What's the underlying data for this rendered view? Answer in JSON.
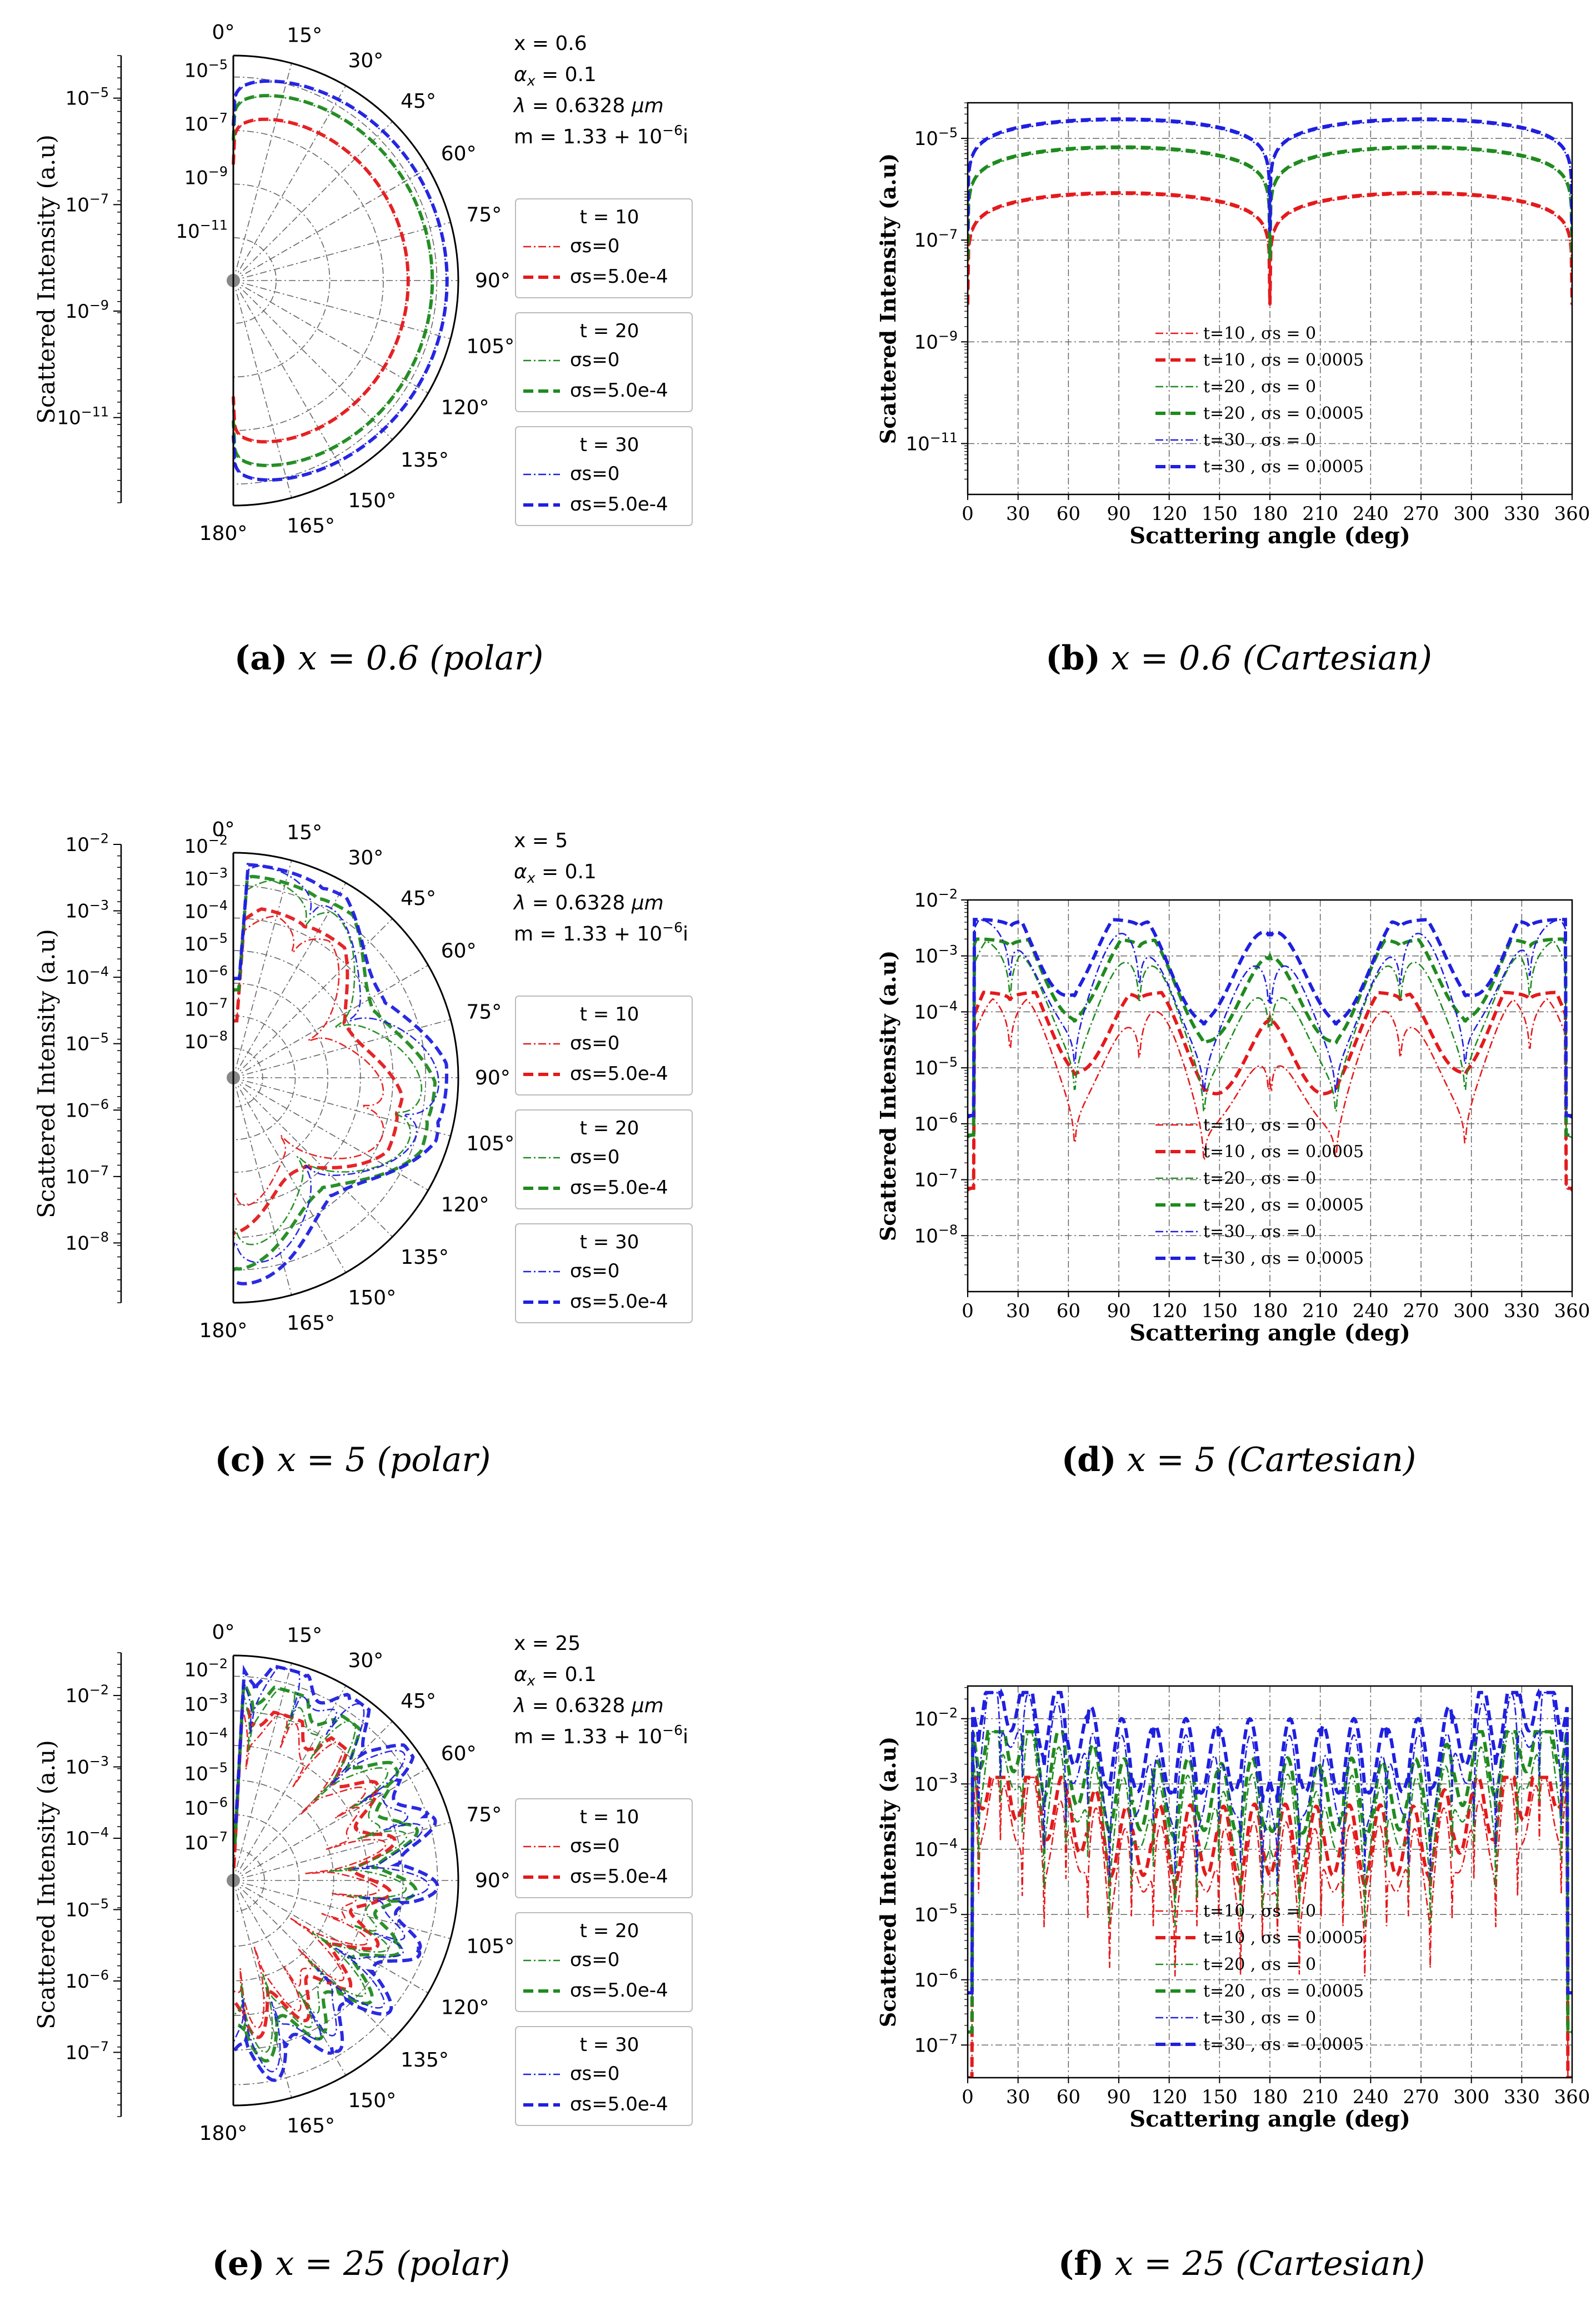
{
  "chart_data": [
    {
      "id": "a",
      "type": "polar-line",
      "caption_letter": "(a)",
      "caption_math": "x = 0.6",
      "caption_mode": "(polar)",
      "ylabel": "Scattered  Intensity (a.u)",
      "theta_labels": [
        "0°",
        "15°",
        "30°",
        "45°",
        "60°",
        "75°",
        "90°",
        "105°",
        "120°",
        "135°",
        "150°",
        "165°",
        "180°"
      ],
      "radial_ticks": [
        {
          "label": "10^-5",
          "e": -5
        },
        {
          "label": "10^-7",
          "e": -7
        },
        {
          "label": "10^-9",
          "e": -9
        },
        {
          "label": "10^-11",
          "e": -11
        }
      ],
      "left_axis_ticks": [
        {
          "label": "10^-5",
          "e": -5
        },
        {
          "label": "10^-7",
          "e": -7
        },
        {
          "label": "10^-9",
          "e": -9
        },
        {
          "label": "10^-11",
          "e": -11
        }
      ],
      "log_range": [
        -12.6,
        -4.2
      ],
      "params": {
        "x": "x = 0.6",
        "alpha": "= 0.1",
        "lambda": "= 0.6328",
        "m": "m = 1.33 + 10"
      },
      "profile": "smooth",
      "peak_log": [
        -6.1,
        -5.2,
        -4.65
      ]
    },
    {
      "id": "b",
      "type": "line",
      "caption_letter": "(b)",
      "caption_math": "x = 0.6",
      "caption_mode": "(Cartesian)",
      "xlabel": "Scattering angle (deg)",
      "ylabel": "Scattered Intensity (a.u)",
      "x_ticks": [
        0,
        30,
        60,
        90,
        120,
        150,
        180,
        210,
        240,
        270,
        300,
        330,
        360
      ],
      "y_ticks": [
        {
          "label": "10^-5",
          "e": -5
        },
        {
          "label": "10^-7",
          "e": -7
        },
        {
          "label": "10^-9",
          "e": -9
        },
        {
          "label": "10^-11",
          "e": -11
        }
      ],
      "ylim_log": [
        -12,
        -4.3
      ],
      "xlim": [
        0,
        360
      ],
      "legend_pos": "center",
      "profile": "smooth",
      "peak_log": [
        -6.1,
        -5.2,
        -4.65
      ]
    },
    {
      "id": "c",
      "type": "polar-line",
      "caption_letter": "(c)",
      "caption_math": "x = 5",
      "caption_mode": "(polar)",
      "ylabel": "Scattered  Intensity (a.u)",
      "theta_labels": [
        "0°",
        "15°",
        "30°",
        "45°",
        "60°",
        "75°",
        "90°",
        "105°",
        "120°",
        "135°",
        "150°",
        "165°",
        "180°"
      ],
      "radial_ticks": [
        {
          "label": "10^-2",
          "e": -2
        },
        {
          "label": "10^-3",
          "e": -3
        },
        {
          "label": "10^-4",
          "e": -4
        },
        {
          "label": "10^-5",
          "e": -5
        },
        {
          "label": "10^-6",
          "e": -6
        },
        {
          "label": "10^-7",
          "e": -7
        },
        {
          "label": "10^-8",
          "e": -8
        }
      ],
      "left_axis_ticks": [
        {
          "label": "10^-2",
          "e": -2
        },
        {
          "label": "10^-3",
          "e": -3
        },
        {
          "label": "10^-4",
          "e": -4
        },
        {
          "label": "10^-5",
          "e": -5
        },
        {
          "label": "10^-6",
          "e": -6
        },
        {
          "label": "10^-7",
          "e": -7
        },
        {
          "label": "10^-8",
          "e": -8
        }
      ],
      "log_range": [
        -8.9,
        -2.0
      ],
      "params": {
        "x": "x = 5",
        "alpha": "= 0.1",
        "lambda": "= 0.6328",
        "m": "m = 1.33 + 10"
      },
      "profile": "lobes5",
      "peak_log": [
        -3.65,
        -2.7,
        -2.35
      ]
    },
    {
      "id": "d",
      "type": "line",
      "caption_letter": "(d)",
      "caption_math": "x = 5",
      "caption_mode": "(Cartesian)",
      "xlabel": "Scattering angle (deg)",
      "ylabel": "Scattered Intensity (a.u)",
      "x_ticks": [
        0,
        30,
        60,
        90,
        120,
        150,
        180,
        210,
        240,
        270,
        300,
        330,
        360
      ],
      "y_ticks": [
        {
          "label": "10^-2",
          "e": -2
        },
        {
          "label": "10^-3",
          "e": -3
        },
        {
          "label": "10^-4",
          "e": -4
        },
        {
          "label": "10^-5",
          "e": -5
        },
        {
          "label": "10^-6",
          "e": -6
        },
        {
          "label": "10^-7",
          "e": -7
        },
        {
          "label": "10^-8",
          "e": -8
        }
      ],
      "ylim_log": [
        -9,
        -2
      ],
      "xlim": [
        0,
        360
      ],
      "legend_pos": "lower-center",
      "profile": "lobes5",
      "peak_log": [
        -3.65,
        -2.7,
        -2.35
      ]
    },
    {
      "id": "e",
      "type": "polar-line",
      "caption_letter": "(e)",
      "caption_math": "x = 25",
      "caption_mode": "(polar)",
      "ylabel": "Scattered  Intensity (a.u)",
      "theta_labels": [
        "0°",
        "15°",
        "30°",
        "45°",
        "60°",
        "75°",
        "90°",
        "105°",
        "120°",
        "135°",
        "150°",
        "165°",
        "180°"
      ],
      "radial_ticks": [
        {
          "label": "10^-2",
          "e": -2
        },
        {
          "label": "10^-3",
          "e": -3
        },
        {
          "label": "10^-4",
          "e": -4
        },
        {
          "label": "10^-5",
          "e": -5
        },
        {
          "label": "10^-6",
          "e": -6
        },
        {
          "label": "10^-7",
          "e": -7
        }
      ],
      "left_axis_ticks": [
        {
          "label": "10^-2",
          "e": -2
        },
        {
          "label": "10^-3",
          "e": -3
        },
        {
          "label": "10^-4",
          "e": -4
        },
        {
          "label": "10^-5",
          "e": -5
        },
        {
          "label": "10^-6",
          "e": -6
        },
        {
          "label": "10^-7",
          "e": -7
        }
      ],
      "log_range": [
        -7.9,
        -1.4
      ],
      "params": {
        "x": "x = 25",
        "alpha": "= 0.1",
        "lambda": "= 0.6328",
        "m": "m = 1.33 + 10"
      },
      "profile": "lobes25",
      "peak_log": [
        -3.0,
        -2.3,
        -1.7
      ]
    },
    {
      "id": "f",
      "type": "line",
      "caption_letter": "(f)",
      "caption_math": "x = 25",
      "caption_mode": "(Cartesian)",
      "xlabel": "Scattering angle (deg)",
      "ylabel": "Scattered Intensity (a.u)",
      "x_ticks": [
        0,
        30,
        60,
        90,
        120,
        150,
        180,
        210,
        240,
        270,
        300,
        330,
        360
      ],
      "y_ticks": [
        {
          "label": "10^-2",
          "e": -2
        },
        {
          "label": "10^-3",
          "e": -3
        },
        {
          "label": "10^-4",
          "e": -4
        },
        {
          "label": "10^-5",
          "e": -5
        },
        {
          "label": "10^-6",
          "e": -6
        },
        {
          "label": "10^-7",
          "e": -7
        }
      ],
      "ylim_log": [
        -7.5,
        -1.5
      ],
      "xlim": [
        0,
        360
      ],
      "legend_pos": "lower-center",
      "profile": "lobes25",
      "peak_log": [
        -3.0,
        -2.3,
        -1.7
      ]
    }
  ],
  "series_styles": [
    {
      "t": "10",
      "color": "#e41a1c"
    },
    {
      "t": "20",
      "color": "#1f8a1f"
    },
    {
      "t": "30",
      "color": "#1f1fe0"
    }
  ],
  "legend_polar": {
    "groups": [
      {
        "title": "t = 10",
        "items": [
          "σs=0",
          "σs=5.0e-4"
        ]
      },
      {
        "title": "t = 20",
        "items": [
          "σs=0",
          "σs=5.0e-4"
        ]
      },
      {
        "title": "t = 30",
        "items": [
          "σs=0",
          "σs=5.0e-4"
        ]
      }
    ]
  },
  "legend_cartesian": {
    "items": [
      "t=10 , σs = 0",
      "t=10 , σs = 0.0005",
      "t=20 , σs = 0",
      "t=20 , σs = 0.0005",
      "t=30 , σs = 0",
      "t=30 , σs = 0.0005"
    ]
  },
  "param_units": {
    "lambda_unit": "μm",
    "m_exp": "−6",
    "m_suffix": "i"
  }
}
